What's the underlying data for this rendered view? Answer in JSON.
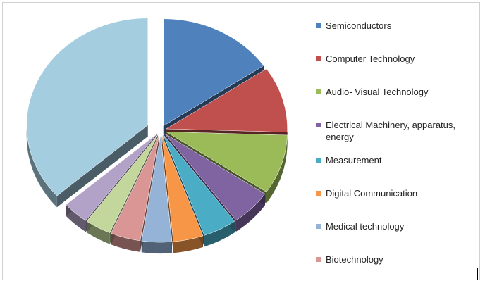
{
  "chart_data": {
    "type": "pie",
    "style": "3d-exploded",
    "legend_position": "right",
    "series": [
      {
        "label": "Semiconductors",
        "value": 15.5,
        "color": "#4F81BD"
      },
      {
        "label": "Computer Technology",
        "value": 10.0,
        "color": "#C0504D"
      },
      {
        "label": "Audio- Visual Technology",
        "value": 9.0,
        "color": "#9BBB59"
      },
      {
        "label": "Electrical Machinery, apparatus, energy",
        "value": 5.5,
        "color": "#8064A2"
      },
      {
        "label": "Measurement",
        "value": 4.5,
        "color": "#4BACC6"
      },
      {
        "label": "Digital Communication",
        "value": 4.0,
        "color": "#F79646"
      },
      {
        "label": "Medical technology",
        "value": 4.0,
        "color": "#95B3D7"
      },
      {
        "label": "Biotechnology",
        "value": 4.0,
        "color": "#D99694"
      },
      {
        "label": "",
        "value": 3.5,
        "color": "#C3D69B"
      },
      {
        "label": "",
        "value": 3.5,
        "color": "#B2A2C7"
      },
      {
        "label": "",
        "value": 36.5,
        "color": "#A5CDE0"
      }
    ]
  }
}
